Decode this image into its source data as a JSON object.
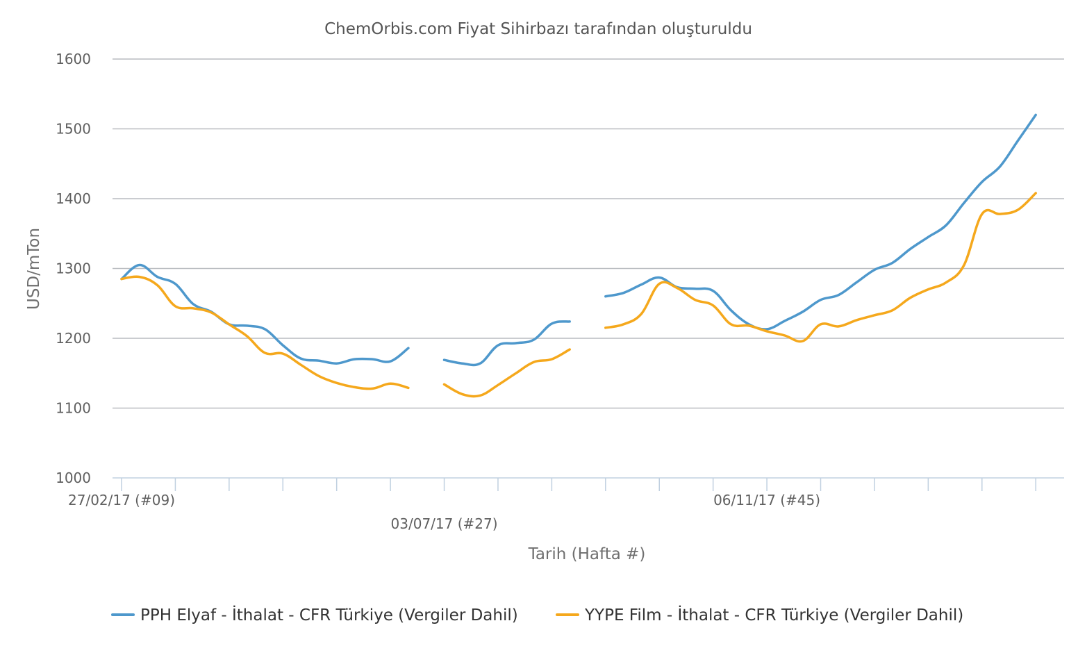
{
  "chart_data": {
    "type": "line",
    "title": "ChemOrbis.com Fiyat Sihirbazı tarafından oluşturuldu",
    "xlabel": "Tarih (Hafta #)",
    "ylabel": "USD/mTon",
    "ylim": [
      1000,
      1600
    ],
    "yticks": [
      1000,
      1100,
      1200,
      1300,
      1400,
      1500,
      1600
    ],
    "grid": true,
    "legend_position": "bottom",
    "x_week_range": [
      9,
      61
    ],
    "x_tick_weeks": [
      9,
      12,
      15,
      18,
      21,
      24,
      27,
      30,
      33,
      36,
      39,
      42,
      45,
      48,
      51,
      54,
      57,
      60
    ],
    "x_tick_labels": [
      {
        "week": 9,
        "label": "27/02/17 (#09)",
        "row": 1
      },
      {
        "week": 27,
        "label": "03/07/17 (#27)",
        "row": 2
      },
      {
        "week": 45,
        "label": "06/11/17 (#45)",
        "row": 1
      }
    ],
    "series": [
      {
        "name": "PPH Elyaf - İthalat - CFR Türkiye (Vergiler Dahil)",
        "color": "#4e98cc",
        "segments": [
          [
            [
              9,
              1285
            ],
            [
              10,
              1305
            ],
            [
              11,
              1288
            ],
            [
              12,
              1278
            ],
            [
              13,
              1249
            ],
            [
              14,
              1238
            ],
            [
              15,
              1220
            ],
            [
              16,
              1218
            ],
            [
              17,
              1213
            ],
            [
              18,
              1190
            ],
            [
              19,
              1171
            ],
            [
              20,
              1168
            ],
            [
              21,
              1164
            ],
            [
              22,
              1170
            ],
            [
              23,
              1170
            ],
            [
              24,
              1167
            ],
            [
              25,
              1186
            ]
          ],
          [
            [
              27,
              1169
            ],
            [
              28,
              1164
            ],
            [
              29,
              1164
            ],
            [
              30,
              1190
            ],
            [
              31,
              1193
            ],
            [
              32,
              1198
            ],
            [
              33,
              1221
            ],
            [
              34,
              1224
            ]
          ],
          [
            [
              36,
              1260
            ],
            [
              37,
              1265
            ],
            [
              38,
              1277
            ],
            [
              39,
              1287
            ],
            [
              40,
              1273
            ],
            [
              41,
              1271
            ],
            [
              42,
              1268
            ],
            [
              43,
              1240
            ],
            [
              44,
              1220
            ],
            [
              45,
              1213
            ],
            [
              46,
              1225
            ],
            [
              47,
              1238
            ],
            [
              48,
              1255
            ],
            [
              49,
              1262
            ],
            [
              50,
              1280
            ],
            [
              51,
              1298
            ],
            [
              52,
              1308
            ],
            [
              53,
              1328
            ],
            [
              54,
              1345
            ],
            [
              55,
              1362
            ],
            [
              56,
              1394
            ],
            [
              57,
              1424
            ],
            [
              58,
              1446
            ],
            [
              59,
              1483
            ],
            [
              60,
              1520
            ]
          ]
        ]
      },
      {
        "name": "YYPE Film - İthalat - CFR Türkiye (Vergiler Dahil)",
        "color": "#f5a81c",
        "segments": [
          [
            [
              9,
              1285
            ],
            [
              10,
              1288
            ],
            [
              11,
              1276
            ],
            [
              12,
              1246
            ],
            [
              13,
              1243
            ],
            [
              14,
              1237
            ],
            [
              15,
              1220
            ],
            [
              16,
              1203
            ],
            [
              17,
              1179
            ],
            [
              18,
              1178
            ],
            [
              19,
              1162
            ],
            [
              20,
              1146
            ],
            [
              21,
              1136
            ],
            [
              22,
              1130
            ],
            [
              23,
              1128
            ],
            [
              24,
              1135
            ],
            [
              25,
              1129
            ]
          ],
          [
            [
              27,
              1134
            ],
            [
              28,
              1120
            ],
            [
              29,
              1118
            ],
            [
              30,
              1133
            ],
            [
              31,
              1150
            ],
            [
              32,
              1166
            ],
            [
              33,
              1170
            ],
            [
              34,
              1184
            ]
          ],
          [
            [
              36,
              1215
            ],
            [
              37,
              1220
            ],
            [
              38,
              1235
            ],
            [
              39,
              1278
            ],
            [
              40,
              1272
            ],
            [
              41,
              1255
            ],
            [
              42,
              1247
            ],
            [
              43,
              1220
            ],
            [
              44,
              1218
            ],
            [
              45,
              1210
            ],
            [
              46,
              1204
            ],
            [
              47,
              1196
            ],
            [
              48,
              1220
            ],
            [
              49,
              1217
            ],
            [
              50,
              1226
            ],
            [
              51,
              1233
            ],
            [
              52,
              1240
            ],
            [
              53,
              1258
            ],
            [
              54,
              1270
            ],
            [
              55,
              1280
            ],
            [
              56,
              1305
            ],
            [
              57,
              1378
            ],
            [
              58,
              1378
            ],
            [
              59,
              1384
            ],
            [
              60,
              1408
            ]
          ]
        ]
      }
    ]
  }
}
